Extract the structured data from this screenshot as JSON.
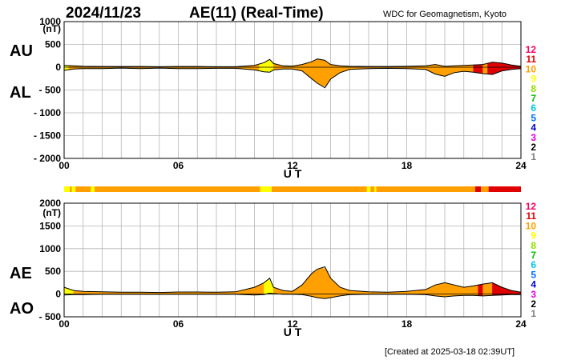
{
  "header": {
    "date": "2024/11/23",
    "title": "AE(11) (Real-Time)",
    "source": "WDC for Geomagnetism, Kyoto"
  },
  "footer": {
    "created": "[Created at 2025-03-18 02:39UT]"
  },
  "level_colors": [
    "#c8c8c8",
    "#808080",
    "#000000",
    "#e000e0",
    "#0000d0",
    "#0070ff",
    "#00c8e0",
    "#00c000",
    "#90e000",
    "#ffff00",
    "#ffa000",
    "#e00000",
    "#ff0060"
  ],
  "chart_data": [
    {
      "type": "area",
      "id": "au_al",
      "panel_labels": [
        "AU",
        "AL"
      ],
      "unit_label": "(nT)",
      "xlabel": "U T",
      "x_ticks": [
        0,
        6,
        12,
        18,
        24
      ],
      "x_tick_labels": [
        "00",
        "06",
        "12",
        "18",
        "24"
      ],
      "ylim": [
        -2000,
        1000
      ],
      "y_ticks": [
        1000,
        500,
        0,
        -500,
        -1000,
        -1500,
        -2000
      ],
      "y_tick_labels": [
        "1000",
        "500",
        "0",
        "- 500",
        "- 1000",
        "- 1500",
        "- 2000"
      ],
      "grid": true,
      "x": [
        0,
        0.5,
        1,
        2,
        3,
        4,
        5,
        6,
        7,
        8,
        9,
        10,
        10.5,
        10.8,
        11,
        11.5,
        12,
        12.5,
        13,
        13.3,
        13.7,
        14,
        14.5,
        15,
        16,
        17,
        18,
        19,
        19.5,
        20,
        20.5,
        21,
        21.5,
        22,
        22.5,
        23,
        23.5,
        24
      ],
      "series": [
        {
          "values": [
            40,
            30,
            20,
            15,
            15,
            15,
            10,
            15,
            15,
            10,
            10,
            40,
            100,
            170,
            80,
            30,
            25,
            60,
            120,
            180,
            150,
            60,
            30,
            20,
            15,
            15,
            20,
            30,
            60,
            20,
            30,
            40,
            50,
            60,
            110,
            90,
            50,
            20
          ]
        },
        {
          "values": [
            -70,
            -40,
            -30,
            -30,
            -20,
            -30,
            -20,
            -30,
            -30,
            -25,
            -25,
            -60,
            -100,
            -110,
            -60,
            -40,
            -40,
            -80,
            -250,
            -350,
            -450,
            -260,
            -120,
            -50,
            -30,
            -25,
            -30,
            -50,
            -150,
            -200,
            -120,
            -90,
            -110,
            -140,
            -160,
            -80,
            -50,
            -30
          ]
        }
      ],
      "activity_levels": [
        {
          "from": 0,
          "to": 0.3,
          "level": 9
        },
        {
          "from": 0.3,
          "to": 10.3,
          "level": 10
        },
        {
          "from": 10.3,
          "to": 10.9,
          "level": 9
        },
        {
          "from": 10.9,
          "to": 21.6,
          "level": 10
        },
        {
          "from": 21.6,
          "to": 21.9,
          "level": 11
        },
        {
          "from": 21.9,
          "to": 22.3,
          "level": 10
        },
        {
          "from": 22.3,
          "to": 24,
          "level": 11
        }
      ],
      "level_labels": [
        "12",
        "11",
        "10",
        "9",
        "8",
        "7",
        "6",
        "5",
        "4",
        "3",
        "2",
        "1"
      ]
    },
    {
      "type": "area",
      "id": "ae_ao",
      "panel_labels": [
        "AE",
        "AO"
      ],
      "unit_label": "(nT)",
      "xlabel": "U T",
      "x_ticks": [
        0,
        6,
        12,
        18,
        24
      ],
      "x_tick_labels": [
        "00",
        "06",
        "12",
        "18",
        "24"
      ],
      "ylim": [
        -500,
        2000
      ],
      "y_ticks": [
        2000,
        1500,
        1000,
        500,
        0,
        -500
      ],
      "y_tick_labels": [
        "2000",
        "1500",
        "1000",
        "500",
        "0",
        "- 500"
      ],
      "grid": true,
      "x": [
        0,
        0.5,
        1,
        2,
        3,
        4,
        5,
        6,
        7,
        8,
        9,
        10,
        10.5,
        10.8,
        11,
        11.5,
        12,
        12.5,
        13,
        13.3,
        13.7,
        14,
        14.5,
        15,
        16,
        17,
        18,
        19,
        19.5,
        20,
        20.5,
        21,
        21.5,
        22,
        22.5,
        23,
        23.5,
        24
      ],
      "series": [
        {
          "values": [
            150,
            80,
            60,
            50,
            40,
            40,
            35,
            45,
            45,
            40,
            50,
            150,
            250,
            350,
            150,
            80,
            60,
            200,
            450,
            550,
            600,
            350,
            150,
            80,
            50,
            40,
            60,
            100,
            200,
            250,
            200,
            150,
            180,
            220,
            250,
            150,
            80,
            40
          ]
        },
        {
          "values": [
            -20,
            -10,
            -10,
            -5,
            -5,
            -5,
            -5,
            -5,
            -5,
            -5,
            -5,
            -20,
            -10,
            20,
            10,
            -5,
            -5,
            -10,
            -50,
            -80,
            -100,
            -80,
            -40,
            -10,
            -5,
            -5,
            -5,
            -10,
            -40,
            -60,
            -40,
            -30,
            -30,
            -40,
            -30,
            -20,
            -10,
            -10
          ]
        }
      ],
      "activity_levels": [
        {
          "from": 0,
          "to": 0.6,
          "level": 9
        },
        {
          "from": 0.6,
          "to": 10.5,
          "level": 10
        },
        {
          "from": 10.5,
          "to": 11.0,
          "level": 9
        },
        {
          "from": 11.0,
          "to": 21.7,
          "level": 10
        },
        {
          "from": 21.7,
          "to": 22.0,
          "level": 11
        },
        {
          "from": 22.0,
          "to": 22.4,
          "level": 10
        },
        {
          "from": 22.4,
          "to": 24,
          "level": 11
        }
      ],
      "level_labels": [
        "12",
        "11",
        "10",
        "9",
        "8",
        "7",
        "6",
        "5",
        "4",
        "3",
        "2",
        "1"
      ]
    }
  ]
}
